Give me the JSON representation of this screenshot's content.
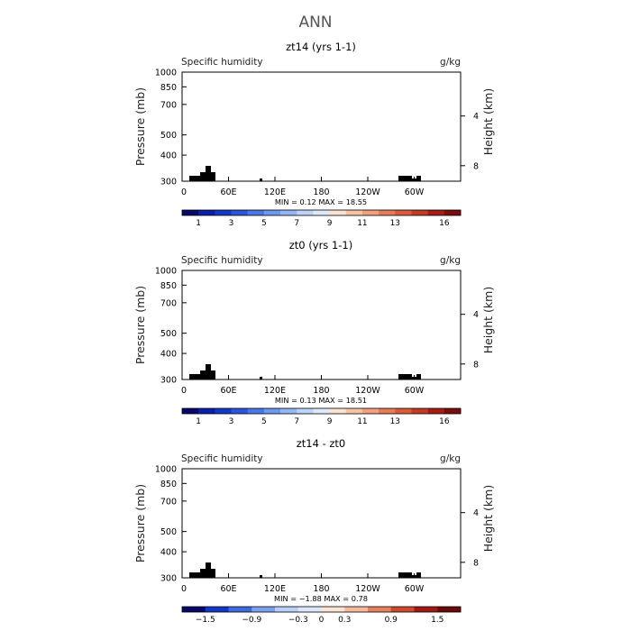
{
  "figure_title": "ANN",
  "colors": {
    "abs_scale": [
      "#08086b",
      "#0c1fa6",
      "#1537c8",
      "#2a56dc",
      "#4a78e6",
      "#6f97ee",
      "#95b5f3",
      "#bdd3f8",
      "#dde8fb",
      "#fbe1d1",
      "#f6c2a6",
      "#f0a07e",
      "#e67b58",
      "#da5a3a",
      "#c43b25",
      "#a51d14",
      "#7a0d0d"
    ],
    "diff_scale": [
      "#08086b",
      "#1537c8",
      "#3e6bdf",
      "#7ea1ee",
      "#b9cff8",
      "#dde9fb",
      "#fde5d4",
      "#f5b99c",
      "#e6805d",
      "#cc4a2e",
      "#9f1a12",
      "#6b0a0a"
    ],
    "topography": "#000000"
  },
  "chart_data": [
    {
      "type": "heatmap",
      "title": "zt14 (yrs 1-1)",
      "variable": "Specific humidity",
      "units": "g/kg",
      "ylabel": "Pressure (mb)",
      "ylabel_right": "Height (km)",
      "y_ticks": [
        "300",
        "400",
        "500",
        "700",
        "850",
        "1000"
      ],
      "y_right_ticks": [
        "8",
        "4"
      ],
      "x_ticks": [
        "0",
        "60E",
        "120E",
        "180",
        "120W",
        "60W"
      ],
      "x_range": [
        0,
        360
      ],
      "p_range": [
        1000,
        300
      ],
      "min_max": "MIN =    0.12   MAX =   18.55",
      "colorbar_labels": [
        "1",
        "3",
        "5",
        "7",
        "9",
        "11",
        "13",
        "16"
      ],
      "field_range": [
        0.12,
        18.55
      ]
    },
    {
      "type": "heatmap",
      "title": "zt0 (yrs 1-1)",
      "variable": "Specific humidity",
      "units": "g/kg",
      "ylabel": "Pressure (mb)",
      "ylabel_right": "Height (km)",
      "y_ticks": [
        "300",
        "400",
        "500",
        "700",
        "850",
        "1000"
      ],
      "y_right_ticks": [
        "8",
        "4"
      ],
      "x_ticks": [
        "0",
        "60E",
        "120E",
        "180",
        "120W",
        "60W"
      ],
      "x_range": [
        0,
        360
      ],
      "p_range": [
        1000,
        300
      ],
      "min_max": "MIN =    0.13   MAX =   18.51",
      "colorbar_labels": [
        "1",
        "3",
        "5",
        "7",
        "9",
        "11",
        "13",
        "16"
      ],
      "field_range": [
        0.13,
        18.51
      ]
    },
    {
      "type": "heatmap",
      "title": "zt14 - zt0",
      "variable": "Specific humidity",
      "units": "g/kg",
      "ylabel": "Pressure (mb)",
      "ylabel_right": "Height (km)",
      "y_ticks": [
        "300",
        "400",
        "500",
        "700",
        "850",
        "1000"
      ],
      "y_right_ticks": [
        "8",
        "4"
      ],
      "x_ticks": [
        "0",
        "60E",
        "120E",
        "180",
        "120W",
        "60W"
      ],
      "x_range": [
        0,
        360
      ],
      "p_range": [
        1000,
        300
      ],
      "min_max": "MIN =  −1.88   MAX =    0.78",
      "colorbar_labels": [
        "−1.5",
        "−0.9",
        "−0.3",
        "0",
        "0.3",
        "0.9",
        "1.5"
      ],
      "field_range": [
        -1.88,
        0.78
      ]
    }
  ]
}
